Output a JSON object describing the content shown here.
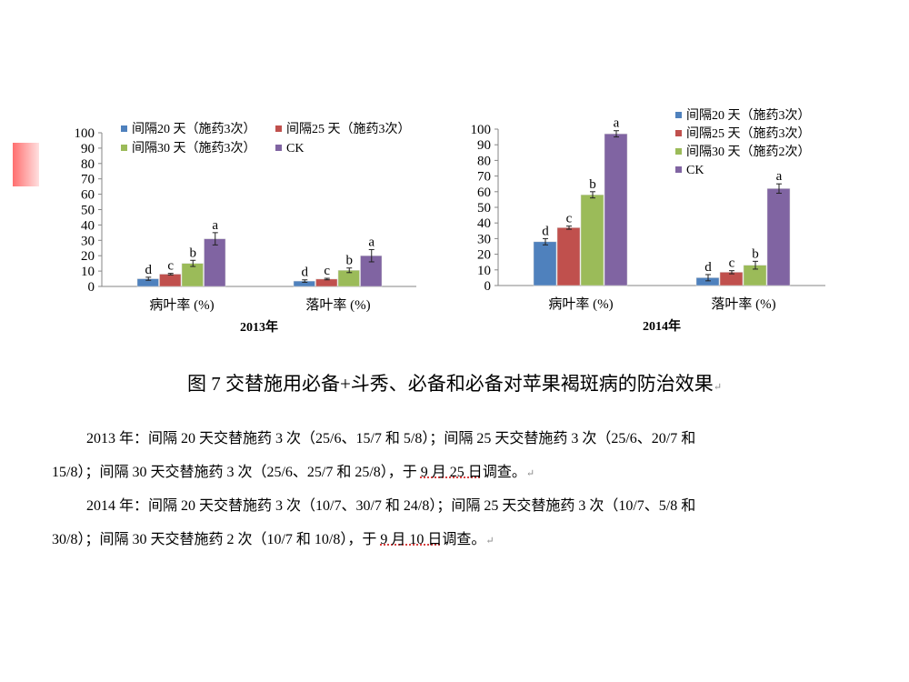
{
  "caption": "图 7 交替施用必备+斗秀、必备和必备对苹果褐斑病的防治效果",
  "notes": [
    {
      "line1": "2013 年：间隔 20 天交替施药 3 次（25/6、15/7 和 5/8）；间隔 25 天交替施药 3 次（25/6、20/7 和",
      "line2a": "15/8）；间隔 30 天交替施药 3 次（25/6、25/7 和 25/8），于 ",
      "date": "9 月 25 日",
      "line2b": "调查。"
    },
    {
      "line1": "2014 年：间隔 20 天交替施药 3 次（10/7、30/7 和 24/8）；间隔 25 天交替施药 3 次（10/7、5/8 和",
      "line2a": "30/8）；间隔 30 天交替施药 2 次（10/7 和 10/8），于 ",
      "date": "9 月 10 日",
      "line2b": "调查。"
    }
  ],
  "chart_data": [
    {
      "type": "bar",
      "title": "2013年",
      "categories": [
        "病叶率 (%)",
        "落叶率 (%)"
      ],
      "ylim": [
        0,
        100
      ],
      "yticks": [
        "0",
        "10",
        "20",
        "30",
        "40",
        "50",
        "60",
        "70",
        "80",
        "90",
        "100"
      ],
      "legend": "top",
      "series": [
        {
          "name": "间隔20 天（施药3次）",
          "color": "#4f81bd",
          "values": [
            5,
            3.5
          ],
          "errors": [
            1,
            0.8
          ],
          "letters": [
            "d",
            "d"
          ]
        },
        {
          "name": "间隔25 天（施药3次）",
          "color": "#c0504d",
          "values": [
            8,
            4.8
          ],
          "errors": [
            0.5,
            0.5
          ],
          "letters": [
            "c",
            "c"
          ]
        },
        {
          "name": "间隔30 天（施药3次）",
          "color": "#9bbb59",
          "values": [
            15,
            10.5
          ],
          "errors": [
            2,
            1.5
          ],
          "letters": [
            "b",
            "b"
          ]
        },
        {
          "name": "CK",
          "color": "#8064a2",
          "values": [
            31,
            20
          ],
          "errors": [
            4,
            4
          ],
          "letters": [
            "a",
            "a"
          ]
        }
      ]
    },
    {
      "type": "bar",
      "title": "2014年",
      "categories": [
        "病叶率 (%)",
        "落叶率 (%)"
      ],
      "ylim": [
        0,
        100
      ],
      "yticks": [
        "0",
        "10",
        "20",
        "30",
        "40",
        "50",
        "60",
        "70",
        "80",
        "90",
        "100"
      ],
      "legend": "top-right",
      "series": [
        {
          "name": "间隔20 天（施药3次）",
          "color": "#4f81bd",
          "values": [
            28,
            5
          ],
          "errors": [
            2,
            2
          ],
          "letters": [
            "d",
            "d"
          ]
        },
        {
          "name": "间隔25 天（施药3次）",
          "color": "#c0504d",
          "values": [
            37,
            8.5
          ],
          "errors": [
            1,
            1
          ],
          "letters": [
            "c",
            "c"
          ]
        },
        {
          "name": "间隔30 天（施药2次）",
          "color": "#9bbb59",
          "values": [
            58,
            13
          ],
          "errors": [
            2,
            2.5
          ],
          "letters": [
            "b",
            "b"
          ]
        },
        {
          "name": "CK",
          "color": "#8064a2",
          "values": [
            97,
            62
          ],
          "errors": [
            2,
            3
          ],
          "letters": [
            "a",
            "a"
          ]
        }
      ]
    }
  ]
}
